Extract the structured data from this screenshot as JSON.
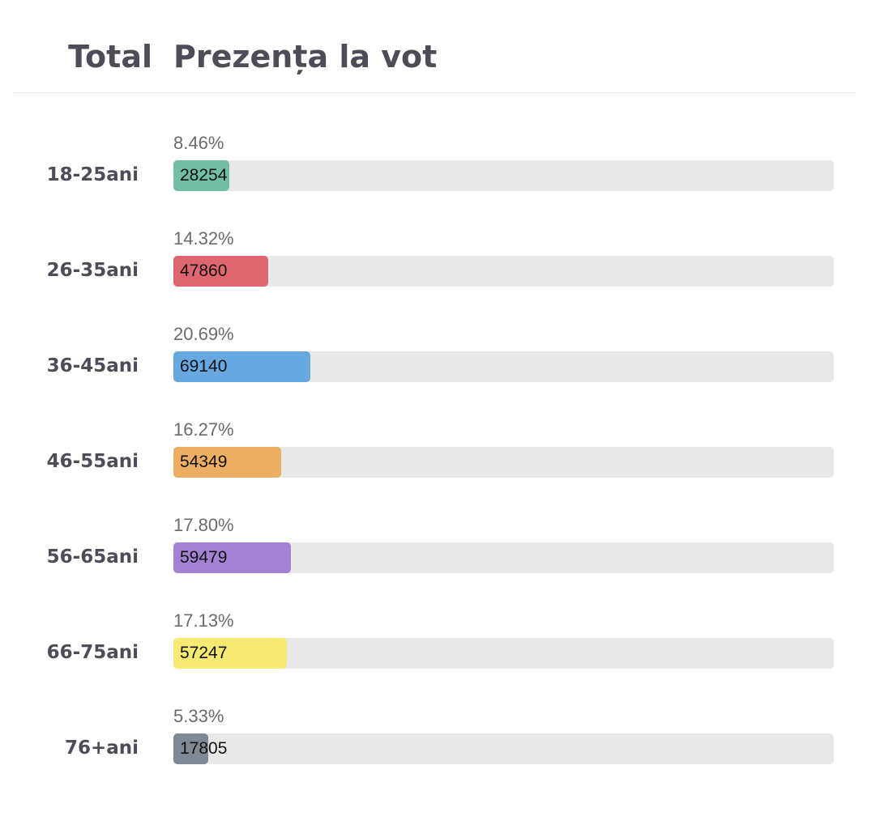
{
  "header": {
    "total_label": "Total",
    "title": "Prezența la vot"
  },
  "chart_data": {
    "type": "bar",
    "title": "Prezența la vot",
    "categories": [
      "18-25ani",
      "26-35ani",
      "36-45ani",
      "46-55ani",
      "56-65ani",
      "66-75ani",
      "76+ani"
    ],
    "values": [
      28254,
      47860,
      69140,
      54349,
      59479,
      57247,
      17805
    ],
    "value_labels": [
      "28254",
      "47860",
      "69140",
      "54349",
      "59479",
      "57247",
      "17805"
    ],
    "percent_labels": [
      "8.46%",
      "14.32%",
      "20.69%",
      "16.27%",
      "17.80%",
      "17.13%",
      "5.33%"
    ],
    "percents": [
      8.46,
      14.32,
      20.69,
      16.27,
      17.8,
      17.13,
      5.33
    ],
    "colors": [
      "#72bea5",
      "#df6670",
      "#68a8e0",
      "#edae63",
      "#a382d4",
      "#f6ea72",
      "#7f8895"
    ],
    "xlim": [
      0,
      100
    ],
    "orientation": "horizontal",
    "grid": false,
    "legend": "none"
  }
}
